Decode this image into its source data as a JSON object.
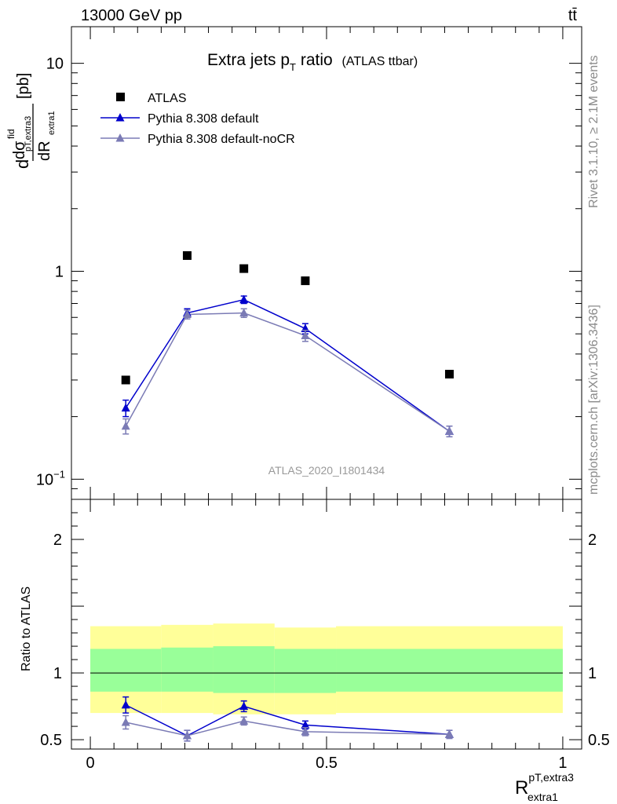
{
  "header": {
    "left": "13000 GeV pp",
    "right": "tt̄"
  },
  "side_labels": {
    "top": "Rivet 3.1.10, ≥ 2.1M events",
    "bottom": "mcplots.cern.ch [arXiv:1306.3436]"
  },
  "chart_data": [
    {
      "type": "scatter",
      "panel": "main",
      "title_main": "Extra jets p",
      "title_sub": "T",
      "title_tail": " ratio",
      "title_paren": "(ATLAS ttbar)",
      "analysis_label": "ATLAS_2020_I1801434",
      "ylabel": "dσ/dR [pb]",
      "ylabel_parts": {
        "d": "d",
        "sigma": "dσ",
        "fid": "fid",
        "pt": "pT,extra3",
        "dR": "dR",
        "extra1": "extra1",
        "unit": "[pb]"
      },
      "yscale": "log",
      "ylim": [
        0.08,
        15
      ],
      "xlim": [
        -0.04,
        1.04
      ],
      "y_ticks": [
        {
          "value": 0.1,
          "label_base": "10",
          "label_exp": "−1"
        },
        {
          "value": 1,
          "label": "1"
        },
        {
          "value": 10,
          "label": "10"
        }
      ],
      "legend_position": "top-left",
      "series": [
        {
          "name": "ATLAS",
          "kind": "data",
          "color": "#000000",
          "marker": "square",
          "x": [
            0.075,
            0.205,
            0.325,
            0.455,
            0.76
          ],
          "y": [
            0.3,
            1.19,
            1.03,
            0.9,
            0.32
          ]
        },
        {
          "name": "Pythia 8.308 default",
          "kind": "mc",
          "color": "#0000cc",
          "marker": "triangle",
          "x": [
            0.075,
            0.205,
            0.325,
            0.455,
            0.76
          ],
          "y": [
            0.22,
            0.63,
            0.73,
            0.53,
            0.17
          ],
          "err": [
            0.02,
            0.03,
            0.03,
            0.03,
            0.01
          ]
        },
        {
          "name": "Pythia 8.308 default-noCR",
          "kind": "mc",
          "color": "#7b7bb5",
          "marker": "triangle",
          "x": [
            0.075,
            0.205,
            0.325,
            0.455,
            0.76
          ],
          "y": [
            0.18,
            0.62,
            0.63,
            0.49,
            0.17
          ],
          "err": [
            0.015,
            0.03,
            0.03,
            0.03,
            0.01
          ]
        }
      ]
    },
    {
      "type": "line",
      "panel": "ratio",
      "ylabel": "Ratio to ATLAS",
      "xlabel_base": "R",
      "xlabel_sup": "pT,extra3",
      "xlabel_sub": "extra1",
      "ylim": [
        0.43,
        2.3
      ],
      "xlim": [
        -0.04,
        1.04
      ],
      "x_ticks": [
        {
          "value": 0,
          "label": "0"
        },
        {
          "value": 0.5,
          "label": "0.5"
        },
        {
          "value": 1,
          "label": "1"
        }
      ],
      "y_ticks": [
        {
          "value": 0.5,
          "label": "0.5"
        },
        {
          "value": 1,
          "label": "1"
        },
        {
          "value": 2,
          "label": "2"
        }
      ],
      "bands": [
        {
          "x0": 0.0,
          "x1": 0.15,
          "green": [
            0.86,
            1.18
          ],
          "yellow": [
            0.7,
            1.35
          ]
        },
        {
          "x0": 0.15,
          "x1": 0.26,
          "green": [
            0.86,
            1.19
          ],
          "yellow": [
            0.7,
            1.36
          ]
        },
        {
          "x0": 0.26,
          "x1": 0.39,
          "green": [
            0.85,
            1.2
          ],
          "yellow": [
            0.69,
            1.37
          ]
        },
        {
          "x0": 0.39,
          "x1": 0.52,
          "green": [
            0.85,
            1.18
          ],
          "yellow": [
            0.69,
            1.34
          ]
        },
        {
          "x0": 0.52,
          "x1": 1.0,
          "green": [
            0.86,
            1.18
          ],
          "yellow": [
            0.7,
            1.35
          ]
        }
      ],
      "colors": {
        "green": "#99ff99",
        "yellow": "#ffff99"
      },
      "series": [
        {
          "name": "Pythia 8.308 default",
          "color": "#0000cc",
          "x": [
            0.075,
            0.205,
            0.325,
            0.455,
            0.76
          ],
          "y": [
            0.76,
            0.53,
            0.75,
            0.61,
            0.54
          ],
          "err": [
            0.06,
            0.04,
            0.04,
            0.03,
            0.03
          ]
        },
        {
          "name": "Pythia 8.308 default-noCR",
          "color": "#7b7bb5",
          "x": [
            0.075,
            0.205,
            0.325,
            0.455,
            0.76
          ],
          "y": [
            0.63,
            0.53,
            0.64,
            0.56,
            0.54
          ],
          "err": [
            0.05,
            0.04,
            0.03,
            0.03,
            0.03
          ]
        }
      ]
    }
  ]
}
